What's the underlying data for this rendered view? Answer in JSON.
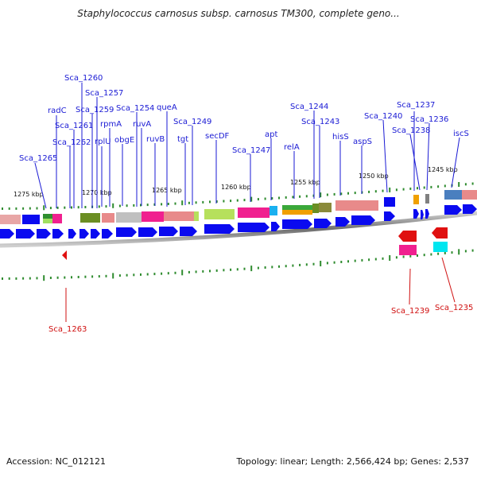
{
  "title": "Staphylococcus carnosus subsp. carnosus TM300, complete geno...",
  "footer": {
    "accession": "Accession: NC_012121",
    "summary": "Topology: linear; Length: 2,566,424 bp; Genes: 2,537"
  },
  "scale_labels": [
    "1275 kbp",
    "1270 kbp",
    "1265 kbp",
    "1260 kbp",
    "1255 kbp",
    "1250 kbp",
    "1245 kbp"
  ],
  "genes_forward": [
    "Sca_1260",
    "Sca_1257",
    "radC",
    "Sca_1259",
    "Sca_1254",
    "queA",
    "Sca_1261",
    "rpmA",
    "ruvA",
    "Sca_1249",
    "Sca_1262",
    "rplU",
    "obgE",
    "ruvB",
    "tgt",
    "secDF",
    "Sca_1265",
    "Sca_1247",
    "apt",
    "relA",
    "Sca_1244",
    "Sca_1243",
    "hisS",
    "aspS",
    "Sca_1240",
    "Sca_1237",
    "Sca_1236",
    "Sca_1238",
    "iscS"
  ],
  "genes_reverse": [
    "Sca_1263",
    "Sca_1239",
    "Sca_1235"
  ],
  "colors": {
    "gene_label_forward": "#1a1ad4",
    "gene_label_reverse": "#d01010",
    "tick": "#2e8b2e",
    "arrow_forward": "#0a0af0",
    "arrow_reverse": "#e01010",
    "backbone": "#7a7a7a"
  }
}
